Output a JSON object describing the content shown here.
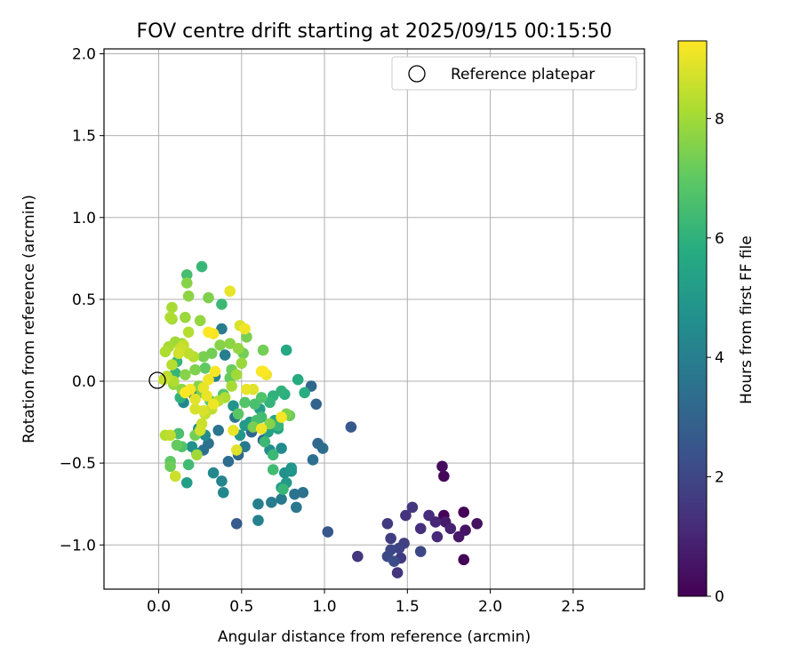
{
  "chart_data": {
    "type": "scatter",
    "title": "FOV centre drift starting at 2025/09/15 00:15:50",
    "xlabel": "Angular distance from reference (arcmin)",
    "ylabel": "Rotation from reference (arcmin)",
    "xlim": [
      -0.33,
      2.93
    ],
    "ylim": [
      -1.27,
      2.03
    ],
    "xticks": [
      0.0,
      0.5,
      1.0,
      1.5,
      2.0,
      2.5
    ],
    "yticks": [
      -1.0,
      -0.5,
      0.0,
      0.5,
      1.0,
      1.5,
      2.0
    ],
    "xtick_labels": [
      "0.0",
      "0.5",
      "1.0",
      "1.5",
      "2.0",
      "2.5"
    ],
    "ytick_labels": [
      "−1.0",
      "−0.5",
      "0.0",
      "0.5",
      "1.0",
      "1.5",
      "2.0"
    ],
    "grid": true,
    "legend": {
      "placement": "top-right",
      "entries": [
        {
          "label": "Reference platepar",
          "marker": "open-circle"
        }
      ]
    },
    "reference_point": {
      "x": 0.0,
      "y": 0.0
    },
    "colorbar": {
      "label": "Hours from first FF file",
      "colormap": "viridis",
      "range": [
        0,
        9.3
      ],
      "ticks": [
        0,
        2,
        4,
        6,
        8
      ],
      "tick_labels": [
        "0",
        "2",
        "4",
        "6",
        "8"
      ]
    },
    "points": [
      {
        "x": 1.84,
        "y": -0.8,
        "h": 0.05
      },
      {
        "x": 1.72,
        "y": -0.82,
        "h": 0.1
      },
      {
        "x": 1.84,
        "y": -1.09,
        "h": 0.1
      },
      {
        "x": 1.72,
        "y": -0.58,
        "h": 0.15
      },
      {
        "x": 1.71,
        "y": -0.52,
        "h": 0.3
      },
      {
        "x": 1.92,
        "y": -0.87,
        "h": 0.4
      },
      {
        "x": 1.85,
        "y": -0.91,
        "h": 0.5
      },
      {
        "x": 1.81,
        "y": -0.95,
        "h": 0.6
      },
      {
        "x": 1.73,
        "y": -0.86,
        "h": 0.7
      },
      {
        "x": 1.76,
        "y": -0.9,
        "h": 0.9
      },
      {
        "x": 1.67,
        "y": -0.86,
        "h": 1.0
      },
      {
        "x": 1.68,
        "y": -0.95,
        "h": 1.1
      },
      {
        "x": 1.63,
        "y": -0.82,
        "h": 1.2
      },
      {
        "x": 1.58,
        "y": -0.9,
        "h": 1.3
      },
      {
        "x": 1.49,
        "y": -0.82,
        "h": 1.4
      },
      {
        "x": 1.53,
        "y": -0.77,
        "h": 1.5
      },
      {
        "x": 1.38,
        "y": -0.87,
        "h": 1.6
      },
      {
        "x": 1.4,
        "y": -0.96,
        "h": 1.7
      },
      {
        "x": 1.48,
        "y": -0.99,
        "h": 1.8
      },
      {
        "x": 1.45,
        "y": -1.02,
        "h": 1.9
      },
      {
        "x": 1.4,
        "y": -1.03,
        "h": 2.0
      },
      {
        "x": 1.38,
        "y": -1.07,
        "h": 2.1
      },
      {
        "x": 1.42,
        "y": -1.1,
        "h": 2.2
      },
      {
        "x": 1.44,
        "y": -1.17,
        "h": 1.4
      },
      {
        "x": 1.46,
        "y": -1.08,
        "h": 1.6
      },
      {
        "x": 1.58,
        "y": -1.04,
        "h": 2.0
      },
      {
        "x": 1.2,
        "y": -1.07,
        "h": 1.5
      },
      {
        "x": 1.02,
        "y": -0.92,
        "h": 2.5
      },
      {
        "x": 1.16,
        "y": -0.28,
        "h": 2.6
      },
      {
        "x": 0.47,
        "y": -0.87,
        "h": 2.7
      },
      {
        "x": 0.95,
        "y": -0.14,
        "h": 3.0
      },
      {
        "x": 0.92,
        "y": -0.03,
        "h": 3.1
      },
      {
        "x": 0.96,
        "y": -0.38,
        "h": 3.2
      },
      {
        "x": 0.99,
        "y": -0.41,
        "h": 3.3
      },
      {
        "x": 0.93,
        "y": -0.48,
        "h": 3.4
      },
      {
        "x": 0.87,
        "y": -0.68,
        "h": 3.5
      },
      {
        "x": 0.82,
        "y": -0.69,
        "h": 3.6
      },
      {
        "x": 0.83,
        "y": -0.77,
        "h": 3.7
      },
      {
        "x": 0.74,
        "y": -0.72,
        "h": 3.8
      },
      {
        "x": 0.68,
        "y": -0.74,
        "h": 3.9
      },
      {
        "x": 0.6,
        "y": -0.75,
        "h": 4.0
      },
      {
        "x": 0.6,
        "y": -0.85,
        "h": 4.1
      },
      {
        "x": 0.38,
        "y": -0.61,
        "h": 4.2
      },
      {
        "x": 0.39,
        "y": -0.68,
        "h": 4.3
      },
      {
        "x": 0.33,
        "y": -0.56,
        "h": 4.4
      },
      {
        "x": 0.74,
        "y": -0.41,
        "h": 4.5
      },
      {
        "x": 0.67,
        "y": -0.42,
        "h": 4.6
      },
      {
        "x": 0.76,
        "y": -0.56,
        "h": 4.7
      },
      {
        "x": 0.8,
        "y": -0.55,
        "h": 4.8
      },
      {
        "x": 0.8,
        "y": -0.53,
        "h": 4.9
      },
      {
        "x": 0.77,
        "y": -0.62,
        "h": 5.0
      },
      {
        "x": 0.74,
        "y": -0.65,
        "h": 5.1
      },
      {
        "x": 0.63,
        "y": -0.36,
        "h": 3.0
      },
      {
        "x": 0.56,
        "y": -0.31,
        "h": 3.1
      },
      {
        "x": 0.48,
        "y": -0.45,
        "h": 3.2
      },
      {
        "x": 0.42,
        "y": -0.49,
        "h": 3.3
      },
      {
        "x": 0.27,
        "y": -0.42,
        "h": 3.4
      },
      {
        "x": 0.3,
        "y": -0.38,
        "h": 3.5
      },
      {
        "x": 0.36,
        "y": -0.3,
        "h": 3.6
      },
      {
        "x": 0.46,
        "y": -0.22,
        "h": 3.7
      },
      {
        "x": 0.52,
        "y": -0.4,
        "h": 3.8
      },
      {
        "x": 0.38,
        "y": 0.32,
        "h": 3.9
      },
      {
        "x": 0.4,
        "y": 0.16,
        "h": 4.0
      },
      {
        "x": 0.34,
        "y": 0.03,
        "h": 4.1
      },
      {
        "x": 0.21,
        "y": -0.08,
        "h": 4.2
      },
      {
        "x": 0.15,
        "y": -0.13,
        "h": 4.3
      },
      {
        "x": 0.24,
        "y": -0.29,
        "h": 4.4
      },
      {
        "x": 0.28,
        "y": -0.33,
        "h": 4.5
      },
      {
        "x": 0.23,
        "y": -0.44,
        "h": 4.6
      },
      {
        "x": 0.2,
        "y": -0.4,
        "h": 4.7
      },
      {
        "x": 0.45,
        "y": -0.15,
        "h": 4.8
      },
      {
        "x": 0.49,
        "y": -0.33,
        "h": 4.9
      },
      {
        "x": 0.52,
        "y": -0.27,
        "h": 5.0
      },
      {
        "x": 0.55,
        "y": -0.25,
        "h": 5.1
      },
      {
        "x": 0.61,
        "y": -0.17,
        "h": 5.2
      },
      {
        "x": 0.66,
        "y": -0.31,
        "h": 5.3
      },
      {
        "x": 0.72,
        "y": -0.29,
        "h": 5.4
      },
      {
        "x": 0.7,
        "y": -0.24,
        "h": 5.5
      },
      {
        "x": 0.77,
        "y": 0.19,
        "h": 5.6
      },
      {
        "x": 0.84,
        "y": 0.01,
        "h": 5.7
      },
      {
        "x": 0.88,
        "y": -0.07,
        "h": 5.8
      },
      {
        "x": 0.76,
        "y": -0.08,
        "h": 5.9
      },
      {
        "x": 0.74,
        "y": -0.06,
        "h": 6.0
      },
      {
        "x": 0.69,
        "y": -0.09,
        "h": 6.0
      },
      {
        "x": 0.67,
        "y": -0.13,
        "h": 6.1
      },
      {
        "x": 0.72,
        "y": -0.27,
        "h": 6.2
      },
      {
        "x": 0.69,
        "y": -0.45,
        "h": 6.3
      },
      {
        "x": 0.69,
        "y": -0.54,
        "h": 6.4
      },
      {
        "x": 0.75,
        "y": -0.66,
        "h": 6.2
      },
      {
        "x": 0.64,
        "y": -0.37,
        "h": 6.3
      },
      {
        "x": 0.62,
        "y": -0.22,
        "h": 6.4
      },
      {
        "x": 0.59,
        "y": -0.24,
        "h": 6.5
      },
      {
        "x": 0.58,
        "y": -0.14,
        "h": 6.6
      },
      {
        "x": 0.62,
        "y": -0.1,
        "h": 6.7
      },
      {
        "x": 0.52,
        "y": -0.13,
        "h": 6.8
      },
      {
        "x": 0.48,
        "y": -0.2,
        "h": 6.9
      },
      {
        "x": 0.26,
        "y": 0.7,
        "h": 6.2
      },
      {
        "x": 0.17,
        "y": 0.65,
        "h": 6.5
      },
      {
        "x": 0.38,
        "y": 0.47,
        "h": 6.3
      },
      {
        "x": 0.17,
        "y": -0.62,
        "h": 5.2
      },
      {
        "x": 0.18,
        "y": -0.51,
        "h": 6.4
      },
      {
        "x": 0.13,
        "y": -0.1,
        "h": 6.0
      },
      {
        "x": 0.1,
        "y": 0.05,
        "h": 6.1
      },
      {
        "x": 0.11,
        "y": 0.12,
        "h": 6.2
      },
      {
        "x": 0.12,
        "y": -0.32,
        "h": 6.6
      },
      {
        "x": 0.14,
        "y": -0.4,
        "h": 6.7
      },
      {
        "x": 0.39,
        "y": -0.08,
        "h": 6.8
      },
      {
        "x": 0.31,
        "y": -0.12,
        "h": 6.9
      },
      {
        "x": 0.28,
        "y": 0.08,
        "h": 7.0
      },
      {
        "x": 0.43,
        "y": 0.02,
        "h": 7.1
      },
      {
        "x": 0.44,
        "y": 0.07,
        "h": 7.2
      },
      {
        "x": 0.51,
        "y": 0.17,
        "h": 7.3
      },
      {
        "x": 0.53,
        "y": 0.27,
        "h": 7.4
      },
      {
        "x": 0.63,
        "y": 0.19,
        "h": 7.3
      },
      {
        "x": 0.79,
        "y": -0.21,
        "h": 7.2
      },
      {
        "x": 0.77,
        "y": -0.2,
        "h": 7.5
      },
      {
        "x": 0.67,
        "y": -0.26,
        "h": 7.6
      },
      {
        "x": 0.57,
        "y": -0.28,
        "h": 7.4
      },
      {
        "x": 0.3,
        "y": 0.51,
        "h": 7.5
      },
      {
        "x": 0.17,
        "y": 0.6,
        "h": 7.6
      },
      {
        "x": 0.18,
        "y": 0.52,
        "h": 7.7
      },
      {
        "x": 0.25,
        "y": 0.37,
        "h": 7.8
      },
      {
        "x": 0.16,
        "y": 0.39,
        "h": 7.9
      },
      {
        "x": 0.08,
        "y": 0.38,
        "h": 8.0
      },
      {
        "x": 0.08,
        "y": 0.45,
        "h": 8.1
      },
      {
        "x": 0.07,
        "y": 0.39,
        "h": 8.2
      },
      {
        "x": 0.18,
        "y": 0.3,
        "h": 8.3
      },
      {
        "x": 0.1,
        "y": 0.24,
        "h": 8.0
      },
      {
        "x": 0.14,
        "y": 0.23,
        "h": 7.9
      },
      {
        "x": 0.06,
        "y": 0.21,
        "h": 8.1
      },
      {
        "x": 0.04,
        "y": 0.18,
        "h": 8.2
      },
      {
        "x": 0.08,
        "y": 0.1,
        "h": 8.3
      },
      {
        "x": 0.05,
        "y": 0.03,
        "h": 8.4
      },
      {
        "x": 0.03,
        "y": 0.01,
        "h": 8.5
      },
      {
        "x": 0.09,
        "y": -0.02,
        "h": 7.8
      },
      {
        "x": 0.14,
        "y": -0.05,
        "h": 7.7
      },
      {
        "x": 0.16,
        "y": 0.04,
        "h": 7.6
      },
      {
        "x": 0.22,
        "y": 0.07,
        "h": 7.5
      },
      {
        "x": 0.27,
        "y": 0.15,
        "h": 7.4
      },
      {
        "x": 0.32,
        "y": 0.17,
        "h": 7.3
      },
      {
        "x": 0.37,
        "y": 0.22,
        "h": 7.6
      },
      {
        "x": 0.43,
        "y": 0.23,
        "h": 7.7
      },
      {
        "x": 0.48,
        "y": 0.2,
        "h": 7.8
      },
      {
        "x": 0.5,
        "y": 0.11,
        "h": 7.9
      },
      {
        "x": 0.47,
        "y": 0.04,
        "h": 8.0
      },
      {
        "x": 0.44,
        "y": -0.03,
        "h": 8.1
      },
      {
        "x": 0.4,
        "y": -0.1,
        "h": 8.2
      },
      {
        "x": 0.36,
        "y": -0.12,
        "h": 8.3
      },
      {
        "x": 0.32,
        "y": -0.17,
        "h": 8.4
      },
      {
        "x": 0.28,
        "y": -0.2,
        "h": 8.5
      },
      {
        "x": 0.26,
        "y": -0.26,
        "h": 8.6
      },
      {
        "x": 0.25,
        "y": -0.3,
        "h": 8.7
      },
      {
        "x": 0.22,
        "y": -0.17,
        "h": 8.8
      },
      {
        "x": 0.22,
        "y": -0.11,
        "h": 8.9
      },
      {
        "x": 0.27,
        "y": -0.04,
        "h": 9.0
      },
      {
        "x": 0.3,
        "y": 0.01,
        "h": 9.1
      },
      {
        "x": 0.34,
        "y": 0.06,
        "h": 9.2
      },
      {
        "x": 0.3,
        "y": 0.3,
        "h": 9.3
      },
      {
        "x": 0.33,
        "y": 0.29,
        "h": 9.2
      },
      {
        "x": 0.43,
        "y": 0.55,
        "h": 9.0
      },
      {
        "x": 0.49,
        "y": 0.34,
        "h": 8.8
      },
      {
        "x": 0.52,
        "y": 0.32,
        "h": 9.1
      },
      {
        "x": 0.62,
        "y": 0.06,
        "h": 9.2
      },
      {
        "x": 0.63,
        "y": 0.06,
        "h": 9.3
      },
      {
        "x": 0.65,
        "y": 0.04,
        "h": 9.1
      },
      {
        "x": 0.57,
        "y": -0.05,
        "h": 8.9
      },
      {
        "x": 0.53,
        "y": -0.05,
        "h": 9.0
      },
      {
        "x": 0.62,
        "y": -0.29,
        "h": 9.1
      },
      {
        "x": 0.74,
        "y": -0.22,
        "h": 9.2
      },
      {
        "x": 0.45,
        "y": -0.3,
        "h": 9.0
      },
      {
        "x": 0.47,
        "y": -0.42,
        "h": 8.9
      },
      {
        "x": 0.1,
        "y": -0.58,
        "h": 8.6
      },
      {
        "x": 0.07,
        "y": -0.33,
        "h": 8.4
      },
      {
        "x": 0.04,
        "y": -0.33,
        "h": 8.3
      },
      {
        "x": 0.07,
        "y": -0.52,
        "h": 7.2
      },
      {
        "x": 0.07,
        "y": -0.49,
        "h": 7.0
      },
      {
        "x": 0.11,
        "y": -0.39,
        "h": 7.1
      },
      {
        "x": 0.22,
        "y": -0.33,
        "h": 7.3
      },
      {
        "x": 0.23,
        "y": -0.45,
        "h": 8.0
      },
      {
        "x": 0.27,
        "y": -0.18,
        "h": 8.8
      },
      {
        "x": 0.12,
        "y": 0.17,
        "h": 8.7
      },
      {
        "x": 0.13,
        "y": 0.2,
        "h": 8.6
      },
      {
        "x": 0.15,
        "y": 0.22,
        "h": 8.5
      },
      {
        "x": 0.18,
        "y": 0.17,
        "h": 8.4
      },
      {
        "x": 0.21,
        "y": 0.15,
        "h": 8.3
      },
      {
        "x": 0.09,
        "y": 0.0,
        "h": 8.2
      },
      {
        "x": 0.24,
        "y": -0.03,
        "h": 7.6
      },
      {
        "x": 0.26,
        "y": -0.07,
        "h": 7.4
      },
      {
        "x": 0.29,
        "y": -0.09,
        "h": 9.0
      },
      {
        "x": 0.33,
        "y": -0.14,
        "h": 9.1
      },
      {
        "x": 0.19,
        "y": -0.05,
        "h": 9.2
      },
      {
        "x": 0.16,
        "y": -0.07,
        "h": 9.3
      }
    ]
  }
}
